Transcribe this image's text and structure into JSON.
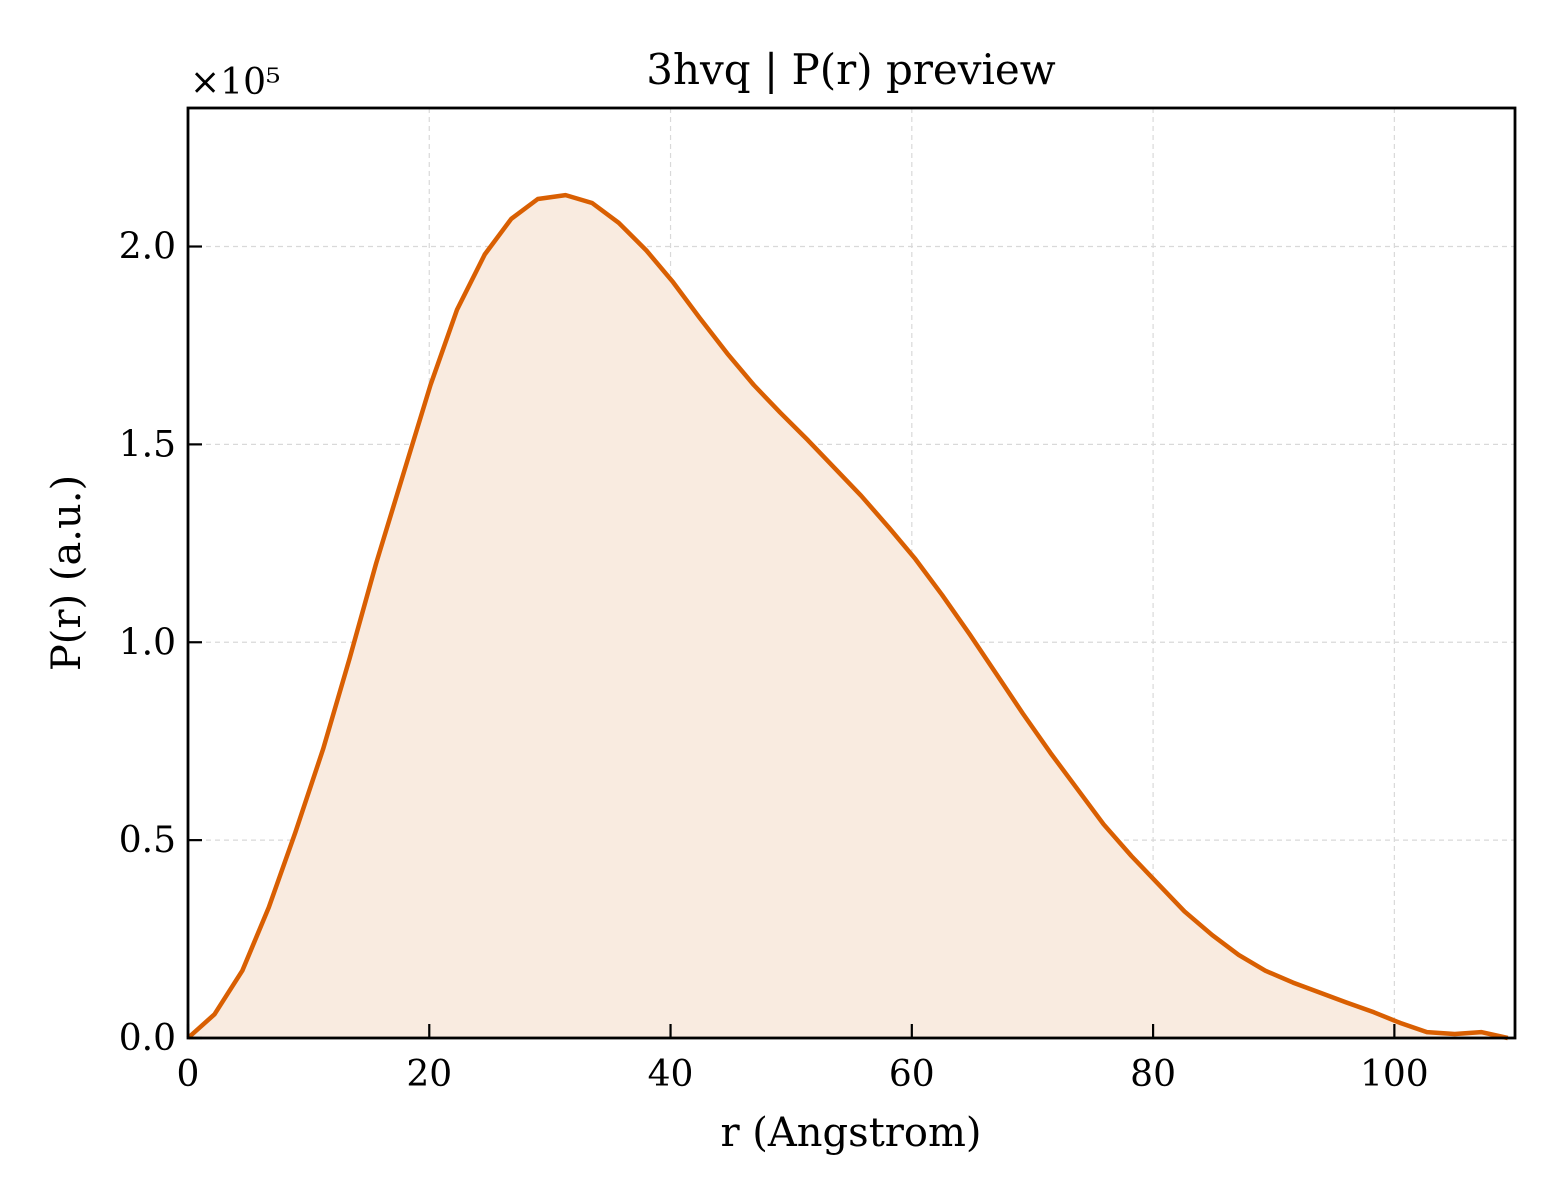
{
  "chart_data": {
    "type": "area",
    "title": "3hvq | P(r) preview",
    "xlabel": "r (Angstrom)",
    "ylabel": "P(r) (a.u.)",
    "y_scale_label": "×10⁵",
    "xlim": [
      0,
      110
    ],
    "ylim": [
      0,
      2.35
    ],
    "y_multiplier": 100000,
    "xticks": [
      0,
      20,
      40,
      60,
      80,
      100
    ],
    "xtick_labels": [
      "0",
      "20",
      "40",
      "60",
      "80",
      "100"
    ],
    "yticks": [
      0.0,
      0.5,
      1.0,
      1.5,
      2.0
    ],
    "ytick_labels": [
      "0.0",
      "0.5",
      "1.0",
      "1.5",
      "2.0"
    ],
    "grid": true,
    "colors": {
      "line": "#d95f02",
      "fill": "#f9ebe0"
    },
    "series": [
      {
        "x": [
          0,
          2.2,
          4.5,
          6.7,
          8.9,
          11.2,
          13.4,
          15.6,
          17.9,
          20.1,
          22.3,
          24.6,
          26.8,
          29.0,
          31.3,
          33.5,
          35.7,
          38.0,
          40.2,
          42.4,
          44.7,
          46.9,
          49.1,
          51.4,
          53.6,
          55.8,
          58.1,
          60.3,
          62.5,
          64.8,
          67.0,
          69.2,
          71.5,
          73.7,
          75.9,
          78.2,
          80.4,
          82.6,
          84.9,
          87.1,
          89.3,
          91.6,
          93.8,
          96.0,
          98.3,
          100.5,
          102.7,
          105.0,
          107.2,
          109.4
        ],
        "y": [
          0.0,
          0.06,
          0.17,
          0.33,
          0.52,
          0.73,
          0.96,
          1.2,
          1.43,
          1.65,
          1.84,
          1.98,
          2.07,
          2.12,
          2.13,
          2.11,
          2.06,
          1.99,
          1.91,
          1.82,
          1.73,
          1.65,
          1.58,
          1.51,
          1.44,
          1.37,
          1.29,
          1.21,
          1.12,
          1.02,
          0.92,
          0.82,
          0.72,
          0.63,
          0.54,
          0.46,
          0.39,
          0.32,
          0.26,
          0.21,
          0.17,
          0.14,
          0.115,
          0.09,
          0.065,
          0.038,
          0.015,
          0.01,
          0.015,
          0.0
        ]
      }
    ]
  }
}
